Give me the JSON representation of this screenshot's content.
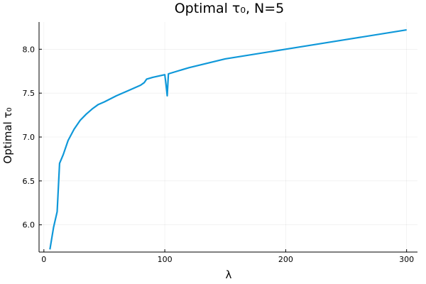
{
  "chart_data": {
    "type": "line",
    "title": "Optimal τ₀, N=5",
    "xlabel": "λ",
    "ylabel": "Optimal τ₀",
    "xlim": [
      -4,
      309
    ],
    "ylim": [
      5.69,
      8.31
    ],
    "xticks": [
      0,
      100,
      200,
      300
    ],
    "yticks": [
      6.0,
      6.5,
      7.0,
      7.5,
      8.0
    ],
    "xtick_labels": [
      "0",
      "100",
      "200",
      "300"
    ],
    "ytick_labels": [
      "6.0",
      "6.5",
      "7.0",
      "7.5",
      "8.0"
    ],
    "grid": true,
    "legend": "none",
    "series": [
      {
        "color": "#0f98d9",
        "points": [
          [
            5,
            5.72
          ],
          [
            8,
            5.97
          ],
          [
            11,
            6.15
          ],
          [
            13,
            6.7
          ],
          [
            16,
            6.8
          ],
          [
            20,
            6.96
          ],
          [
            25,
            7.09
          ],
          [
            30,
            7.19
          ],
          [
            35,
            7.26
          ],
          [
            40,
            7.32
          ],
          [
            45,
            7.37
          ],
          [
            50,
            7.4
          ],
          [
            60,
            7.47
          ],
          [
            70,
            7.53
          ],
          [
            80,
            7.59
          ],
          [
            83,
            7.62
          ],
          [
            85,
            7.66
          ],
          [
            90,
            7.68
          ],
          [
            100,
            7.71
          ],
          [
            101,
            7.6
          ],
          [
            102,
            7.47
          ],
          [
            103,
            7.72
          ],
          [
            120,
            7.79
          ],
          [
            150,
            7.89
          ],
          [
            200,
            8.0
          ],
          [
            250,
            8.11
          ],
          [
            300,
            8.22
          ]
        ]
      }
    ]
  }
}
